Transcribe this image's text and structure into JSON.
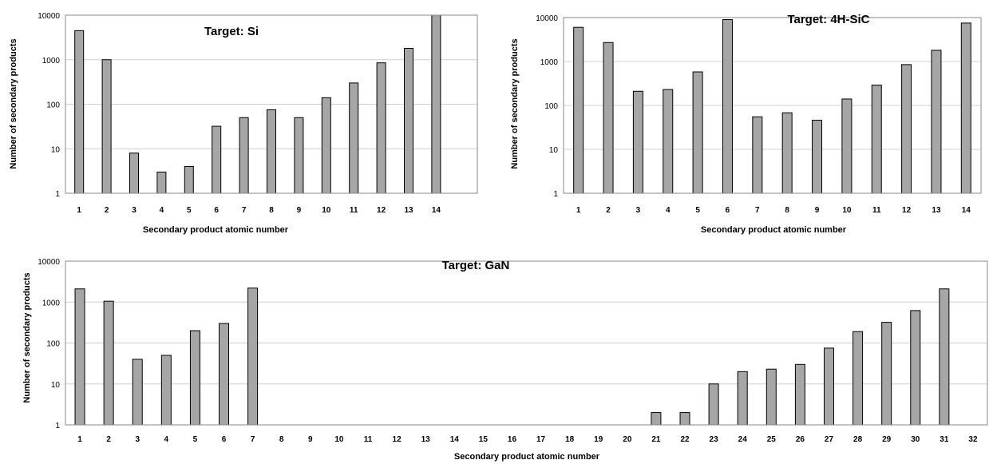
{
  "chart_data": [
    {
      "type": "bar",
      "title": "Target: Si",
      "xlabel": "Secondary product atomic number",
      "ylabel": "Number of secondary products",
      "yscale": "log",
      "ylim": [
        1,
        10000
      ],
      "yticks": [
        "1",
        "10",
        "100",
        "1000",
        "10000"
      ],
      "grid": true,
      "categories": [
        "1",
        "2",
        "3",
        "4",
        "5",
        "6",
        "7",
        "8",
        "9",
        "10",
        "11",
        "12",
        "13",
        "14"
      ],
      "values": [
        4500,
        1000,
        8,
        3,
        4,
        32,
        50,
        75,
        50,
        140,
        300,
        850,
        1800,
        10000
      ],
      "colors": {
        "bar": "#a6a6a6",
        "edge": "#000000"
      }
    },
    {
      "type": "bar",
      "title": "Target: 4H-SiC",
      "xlabel": "Secondary product atomic number",
      "ylabel": "Number of secondary products",
      "yscale": "log",
      "ylim": [
        1,
        10000
      ],
      "yticks": [
        "1",
        "10",
        "100",
        "1000",
        "10000"
      ],
      "grid": true,
      "categories": [
        "1",
        "2",
        "3",
        "4",
        "5",
        "6",
        "7",
        "8",
        "9",
        "10",
        "11",
        "12",
        "13",
        "14"
      ],
      "values": [
        6000,
        2700,
        210,
        230,
        580,
        9000,
        55,
        68,
        46,
        140,
        290,
        850,
        1800,
        7500
      ],
      "colors": {
        "bar": "#a6a6a6",
        "edge": "#000000"
      }
    },
    {
      "type": "bar",
      "title": "Target: GaN",
      "xlabel": "Secondary product atomic number",
      "ylabel": "Number of secondary products",
      "yscale": "log",
      "ylim": [
        1,
        10000
      ],
      "yticks": [
        "1",
        "10",
        "100",
        "1000",
        "10000"
      ],
      "grid": true,
      "categories": [
        "1",
        "2",
        "3",
        "4",
        "5",
        "6",
        "7",
        "8",
        "9",
        "10",
        "11",
        "12",
        "13",
        "14",
        "15",
        "16",
        "17",
        "18",
        "19",
        "20",
        "21",
        "22",
        "23",
        "24",
        "25",
        "26",
        "27",
        "28",
        "29",
        "30",
        "31",
        "32"
      ],
      "values": [
        2100,
        1050,
        40,
        50,
        200,
        300,
        2200,
        null,
        null,
        null,
        null,
        null,
        null,
        null,
        null,
        null,
        null,
        null,
        null,
        null,
        2,
        2,
        10,
        20,
        23,
        30,
        75,
        190,
        320,
        620,
        2100,
        null
      ],
      "colors": {
        "bar": "#a6a6a6",
        "edge": "#000000"
      }
    }
  ]
}
